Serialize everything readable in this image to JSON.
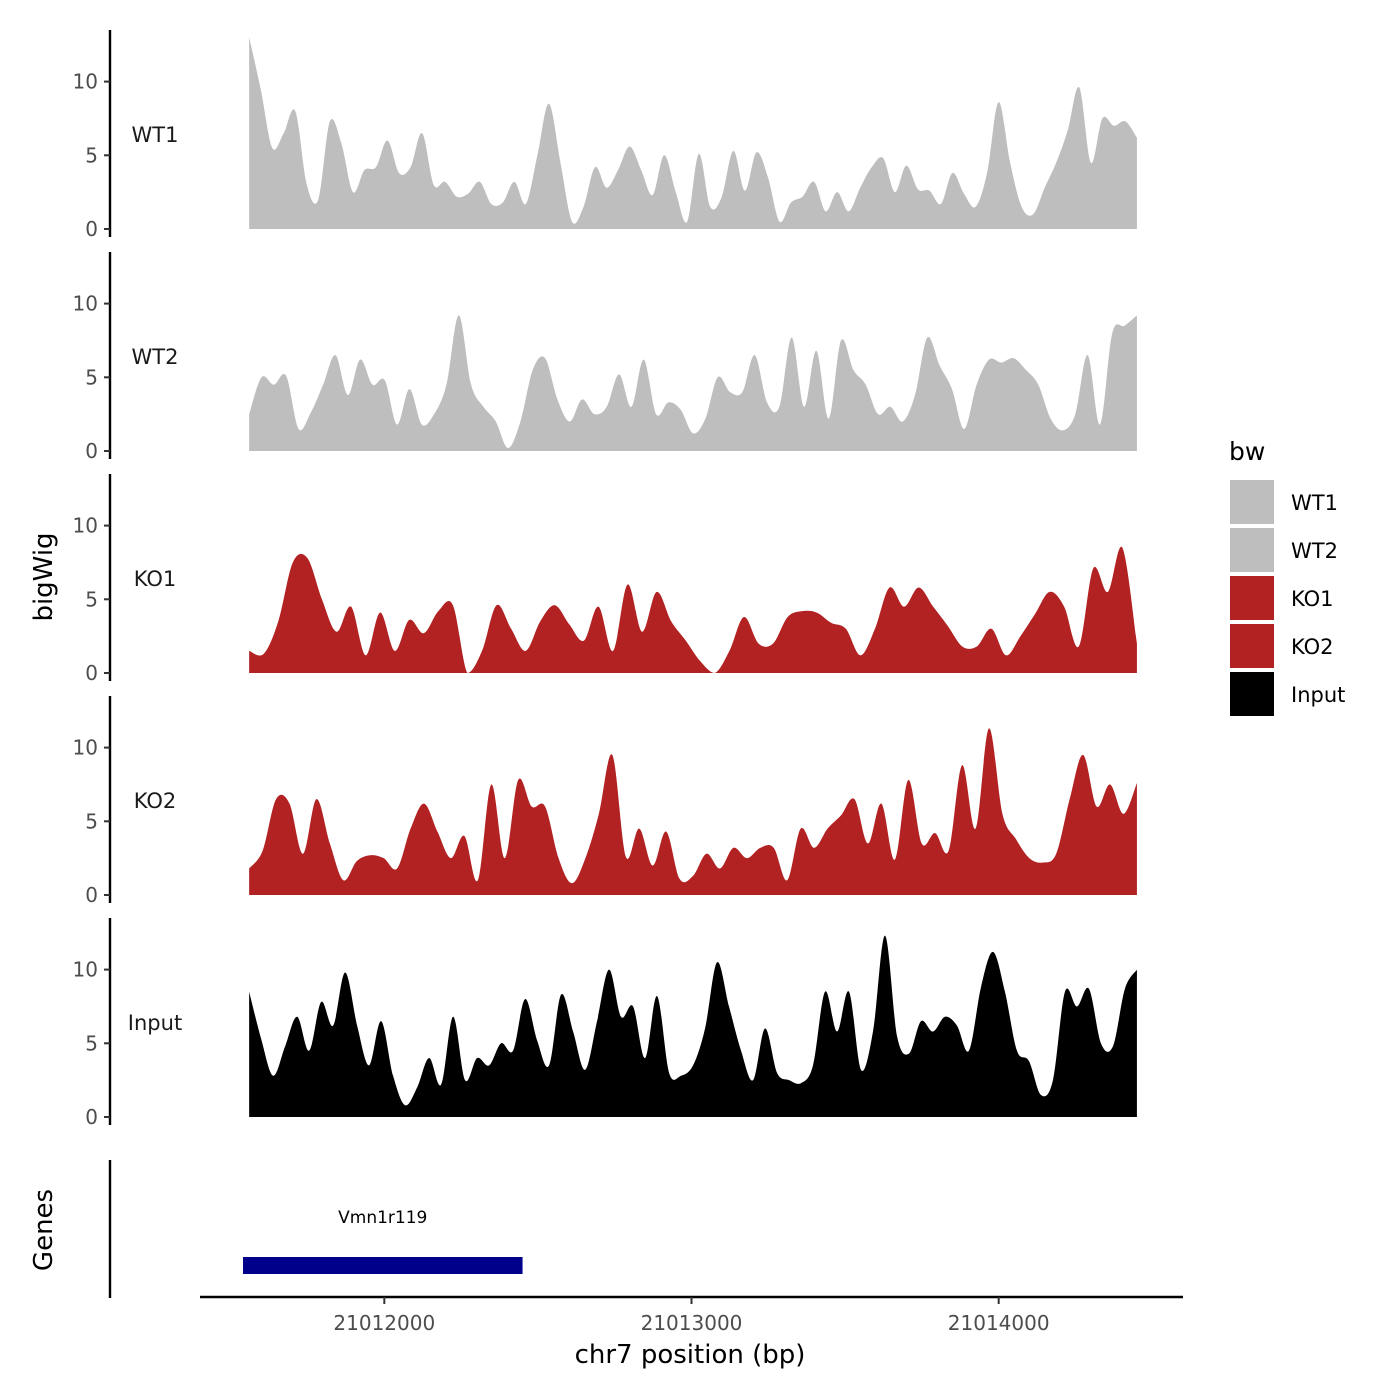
{
  "chart_data": {
    "type": "area",
    "ylabel": "bigWig",
    "xlabel": "chr7 position (bp)",
    "genes_label": "Genes",
    "ylim": [
      0,
      13.5
    ],
    "yticks": [
      0,
      5,
      10
    ],
    "xlim": [
      21011400,
      21014600
    ],
    "xticks": [
      21012000,
      21013000,
      21014000
    ],
    "x_range": [
      21011560,
      21014450
    ],
    "legend": {
      "title": "bw",
      "position": "right",
      "entries": [
        {
          "label": "WT1",
          "color": "#bebebe"
        },
        {
          "label": "WT2",
          "color": "#bebebe"
        },
        {
          "label": "KO1",
          "color": "#b22222"
        },
        {
          "label": "KO2",
          "color": "#b22222"
        },
        {
          "label": "Input",
          "color": "#000000"
        }
      ]
    },
    "tracks": [
      {
        "name": "WT1",
        "color": "#bebebe",
        "values": [
          13,
          9.5,
          5.5,
          6.5,
          8,
          3,
          2,
          7.3,
          5.8,
          2.5,
          4,
          4.2,
          6,
          3.8,
          4.2,
          6.5,
          3,
          3.2,
          2.2,
          2.4,
          3.2,
          1.7,
          1.8,
          3.2,
          1.7,
          5,
          8.5,
          4.5,
          0.5,
          1.5,
          4.2,
          2.8,
          4,
          5.6,
          4,
          2.3,
          5,
          2.5,
          0.5,
          5.1,
          1.5,
          2.2,
          5.3,
          2.6,
          5.2,
          3.5,
          0.5,
          1.8,
          2.2,
          3.2,
          1.2,
          2.5,
          1.2,
          2.8,
          4.2,
          4.8,
          2.5,
          4.3,
          2.7,
          2.6,
          1.7,
          3.8,
          2.4,
          1.5,
          3.8,
          8.6,
          4.5,
          1.5,
          1,
          2.8,
          4.5,
          6.7,
          9.6,
          4.5,
          7.5,
          7,
          7.3,
          6.2
        ]
      },
      {
        "name": "WT2",
        "color": "#bebebe",
        "values": [
          2.5,
          5,
          4.5,
          5.1,
          1.5,
          2.6,
          4.5,
          6.5,
          3.8,
          6.2,
          4.5,
          4.8,
          1.8,
          4.2,
          1.8,
          2.5,
          4.5,
          9.2,
          4.5,
          3,
          2,
          0.2,
          2,
          5.5,
          6.3,
          3.5,
          2,
          3.5,
          2.5,
          3,
          5.2,
          3,
          6.2,
          2.5,
          3.3,
          2.8,
          1.2,
          2.2,
          5,
          4,
          4,
          6.5,
          3.3,
          3,
          7.7,
          3,
          6.8,
          2.2,
          7.5,
          5.5,
          4.5,
          2.5,
          3,
          2,
          3.8,
          7.7,
          5.8,
          4.2,
          1.5,
          4.5,
          6.2,
          6,
          6.3,
          5.5,
          4.5,
          2.2,
          1.4,
          2.5,
          6.5,
          1.8,
          8,
          8.5,
          9.2
        ]
      },
      {
        "name": "KO1",
        "color": "#b22222",
        "values": [
          1.5,
          1.3,
          3.5,
          7.5,
          7.8,
          5,
          2.8,
          4.5,
          1.2,
          4.1,
          1.5,
          3.6,
          2.7,
          4.2,
          4.6,
          0,
          1.5,
          4.6,
          3,
          1.5,
          3.5,
          4.6,
          3.3,
          2.2,
          4.5,
          1.5,
          6,
          2.8,
          5.5,
          3.5,
          2.2,
          0.8,
          0,
          1.5,
          3.8,
          2,
          2,
          3.8,
          4.2,
          4.1,
          3.4,
          3,
          1.2,
          3,
          5.8,
          4.5,
          5.8,
          4.5,
          3.2,
          1.8,
          1.8,
          3,
          1.2,
          2.5,
          4,
          5.5,
          4.5,
          1.8,
          7.1,
          5.5,
          8.5,
          2
        ]
      },
      {
        "name": "KO2",
        "color": "#b22222",
        "values": [
          1.8,
          3,
          6.5,
          6.2,
          2.8,
          6.5,
          3.5,
          1,
          2.3,
          2.7,
          2.5,
          1.8,
          4.5,
          6.2,
          4.3,
          2.5,
          4,
          1,
          7.5,
          2.5,
          7.8,
          6,
          6,
          2.5,
          0.8,
          2.5,
          5.5,
          9.5,
          2.6,
          4.5,
          2,
          4.3,
          1.1,
          1.3,
          2.8,
          1.8,
          3.2,
          2.5,
          3.2,
          3.2,
          1,
          4.5,
          3.2,
          4.5,
          5.4,
          6.5,
          3.5,
          6.2,
          2.4,
          7.8,
          3.5,
          4.2,
          3,
          8.8,
          4.5,
          11.3,
          5.5,
          3.8,
          2.5,
          2.2,
          2.8,
          6.5,
          9.5,
          6,
          7.5,
          5.5,
          7.6
        ]
      },
      {
        "name": "Input",
        "color": "#000000",
        "values": [
          8.5,
          5.3,
          2.8,
          4.8,
          6.8,
          4.5,
          7.8,
          6.2,
          9.8,
          6.2,
          3.5,
          6.5,
          2.8,
          0.8,
          2,
          4,
          2.2,
          6.8,
          2.5,
          4,
          3.5,
          5,
          4.5,
          8,
          5.2,
          3.5,
          8.3,
          5.8,
          3.2,
          6.5,
          10,
          6.8,
          7.5,
          4,
          8.2,
          3,
          2.8,
          3.5,
          6,
          10.5,
          7.5,
          4.5,
          2.5,
          6,
          3,
          2.5,
          2.3,
          3.5,
          8.5,
          5.8,
          8.5,
          3.2,
          5.8,
          12.3,
          5.5,
          4.3,
          6.5,
          5.8,
          6.8,
          6.2,
          4.5,
          8.8,
          11.2,
          8.5,
          4.5,
          3.8,
          1.5,
          2.5,
          8.5,
          7.5,
          8.7,
          5,
          4.8,
          8.7,
          10
        ]
      }
    ],
    "genes": [
      {
        "name": "Vmn1r119",
        "start": 21011540,
        "end": 21012450,
        "color": "#00008b"
      }
    ]
  }
}
